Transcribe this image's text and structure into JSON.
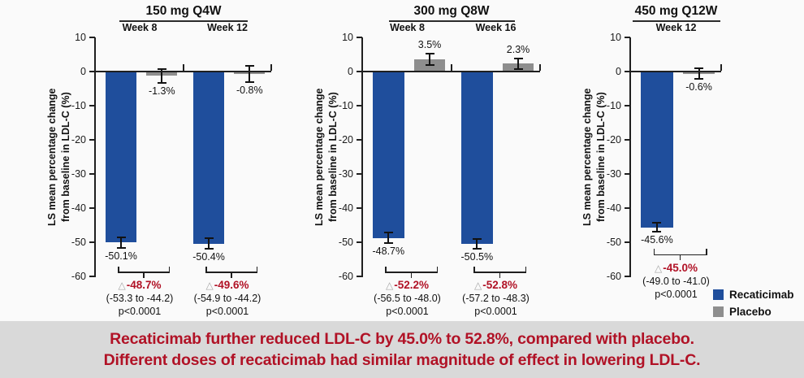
{
  "figure": {
    "background": "#fafafa"
  },
  "colors": {
    "recaticimab": "#1f4e9c",
    "placebo": "#8e8e8e",
    "diff_text": "#b11226",
    "triangle": "#a6a6a6",
    "axis": "#1f1f1f"
  },
  "chart_data": [
    {
      "type": "bar",
      "title": "150 mg Q4W",
      "ylabel": "LS mean percentage change\nfrom baseline in LDL-C (%)",
      "ylim": [
        10,
        -60
      ],
      "yticks": [
        10,
        0,
        -10,
        -20,
        -30,
        -40,
        -50,
        -60
      ],
      "series_names": [
        "Recaticimab",
        "Placebo"
      ],
      "groups": [
        {
          "week": "Week 8",
          "recaticimab": {
            "value": -50.1,
            "label": "-50.1%",
            "error": 1.6
          },
          "placebo": {
            "value": -1.3,
            "label": "-1.3%",
            "error": 2.1
          },
          "difference": {
            "delta": "-48.7%",
            "ci": "(-53.3 to -44.2)",
            "p": "p<0.0001"
          }
        },
        {
          "week": "Week 12",
          "recaticimab": {
            "value": -50.4,
            "label": "-50.4%",
            "error": 1.6
          },
          "placebo": {
            "value": -0.8,
            "label": "-0.8%",
            "error": 2.4
          },
          "difference": {
            "delta": "-49.6%",
            "ci": "(-54.9 to -44.2)",
            "p": "p<0.0001"
          }
        }
      ]
    },
    {
      "type": "bar",
      "title": "300 mg Q8W",
      "ylabel": "LS mean percentage change\nfrom baseline in LDL-C (%)",
      "ylim": [
        10,
        -60
      ],
      "yticks": [
        10,
        0,
        -10,
        -20,
        -30,
        -40,
        -50,
        -60
      ],
      "series_names": [
        "Recaticimab",
        "Placebo"
      ],
      "groups": [
        {
          "week": "Week 8",
          "recaticimab": {
            "value": -48.7,
            "label": "-48.7%",
            "error": 1.5
          },
          "placebo": {
            "value": 3.5,
            "label": "3.5%",
            "error": 1.7
          },
          "difference": {
            "delta": "-52.2%",
            "ci": "(-56.5 to -48.0)",
            "p": "p<0.0001"
          }
        },
        {
          "week": "Week 16",
          "recaticimab": {
            "value": -50.5,
            "label": "-50.5%",
            "error": 1.5
          },
          "placebo": {
            "value": 2.3,
            "label": "2.3%",
            "error": 1.6
          },
          "difference": {
            "delta": "-52.8%",
            "ci": "(-57.2 to -48.3)",
            "p": "p<0.0001"
          }
        }
      ]
    },
    {
      "type": "bar",
      "title": "450 mg Q12W",
      "ylabel": "LS mean percentage change\nfrom baseline in LDL-C (%)",
      "ylim": [
        10,
        -60
      ],
      "yticks": [
        10,
        0,
        -10,
        -20,
        -30,
        -40,
        -50,
        -60
      ],
      "series_names": [
        "Recaticimab",
        "Placebo"
      ],
      "groups": [
        {
          "week": "Week 12",
          "recaticimab": {
            "value": -45.6,
            "label": "-45.6%",
            "error": 1.3
          },
          "placebo": {
            "value": -0.6,
            "label": "-0.6%",
            "error": 1.6
          },
          "difference": {
            "delta": "-45.0%",
            "ci": "(-49.0 to -41.0)",
            "p": "p<0.0001"
          }
        }
      ]
    }
  ],
  "legend": {
    "items": [
      {
        "label": "Recaticimab",
        "color": "#1f4e9c"
      },
      {
        "label": "Placebo",
        "color": "#8e8e8e"
      }
    ]
  },
  "banner": {
    "line1": "Recaticimab further reduced LDL-C by 45.0% to 52.8%, compared with placebo.",
    "line2": "Different doses of recaticimab had similar magnitude of effect in lowering LDL-C.",
    "text_color": "#b11226",
    "background": "#d9d9d9"
  }
}
